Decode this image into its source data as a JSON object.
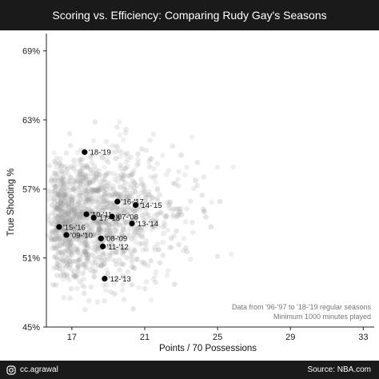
{
  "header": {
    "title": "Scoring vs. Efficiency: Comparing Rudy Gay's Seasons"
  },
  "footer": {
    "handle": "cc.agrawal",
    "source": "Source: NBA.com",
    "icon": "instagram-icon"
  },
  "colors": {
    "bar_bg": "#1a1a1a",
    "highlight": "#000000",
    "background_dot": "#9a9a9a"
  },
  "chart_data": {
    "type": "scatter",
    "title": "Scoring vs. Efficiency: Comparing Rudy Gay's Seasons",
    "xlabel": "Points / 70 Possessions",
    "ylabel": "True Shooting %",
    "xlim": [
      15.6,
      33.6
    ],
    "ylim": [
      45,
      70.5
    ],
    "x_ticks": [
      17,
      21,
      25,
      29,
      33
    ],
    "y_ticks": [
      45,
      51,
      57,
      63,
      69
    ],
    "y_tick_labels": [
      "45%",
      "51%",
      "57%",
      "63%",
      "69%"
    ],
    "grid": false,
    "annotation": [
      "Data from '96-'97 to '18-'19 regular seasons",
      "Minimum 1000 minutes played"
    ],
    "background_series": {
      "name": "",
      "note": "all qualifying player seasons, rendered as translucent grey points"
    },
    "series": [
      {
        "name": "",
        "points": [
          {
            "label": "'18-'19",
            "x": 17.7,
            "y": 60.2
          },
          {
            "label": "'16-'17",
            "x": 19.5,
            "y": 55.9
          },
          {
            "label": "'14-'15",
            "x": 20.5,
            "y": 55.6
          },
          {
            "label": "'10-'11",
            "x": 17.8,
            "y": 54.8
          },
          {
            "label": "'07-'08",
            "x": 19.2,
            "y": 54.6
          },
          {
            "label": "'17-'18",
            "x": 18.2,
            "y": 54.5
          },
          {
            "label": "'15-'16",
            "x": 16.3,
            "y": 53.7
          },
          {
            "label": "'13-'14",
            "x": 20.3,
            "y": 54.0
          },
          {
            "label": "'08-'09",
            "x": 18.6,
            "y": 52.7
          },
          {
            "label": "'09-'10",
            "x": 16.7,
            "y": 53.0
          },
          {
            "label": "'11-'12",
            "x": 18.7,
            "y": 52.0
          },
          {
            "label": "'12-'13",
            "x": 18.8,
            "y": 49.2
          }
        ]
      }
    ]
  }
}
